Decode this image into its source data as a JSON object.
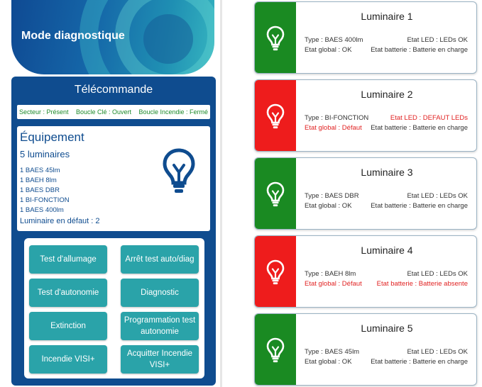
{
  "header": {
    "title": "Mode diagnostique"
  },
  "telecommande": {
    "title": "Télécommande",
    "status": {
      "secteur": "Secteur : Présent",
      "boucle_cle": "Boucle Clé : Ouvert",
      "boucle_incendie": "Boucle Incendie : Fermé"
    }
  },
  "equipement": {
    "title": "Équipement",
    "count": "5 luminaires",
    "items": [
      "1 BAES 45lm",
      "1 BAEH 8lm",
      "1 BAES DBR",
      "1 BI-FONCTION",
      "1 BAES 400lm"
    ],
    "defaut": "Luminaire en défaut : 2"
  },
  "buttons": [
    {
      "label": "Test d'allumage"
    },
    {
      "label": "Arrêt test auto/diag"
    },
    {
      "label": "Test d'autonomie"
    },
    {
      "label": "Diagnostic"
    },
    {
      "label": "Extinction"
    },
    {
      "label": "Programmation test autonomie"
    },
    {
      "label": "Incendie VISI+"
    },
    {
      "label": "Acquitter Incendie VISI+"
    }
  ],
  "luminaires": [
    {
      "name": "Luminaire 1",
      "status": "ok",
      "type": "Type : BAES 400lm",
      "led": "Etat LED : LEDs OK",
      "global": "Etat global : OK",
      "batterie": "Etat batterie : Batterie en charge"
    },
    {
      "name": "Luminaire 2",
      "status": "error",
      "type": "Type : BI-FONCTION",
      "led": "Etat LED : DEFAUT LEDs",
      "global": "Etat global : Défaut",
      "batterie": "Etat batterie : Batterie en charge"
    },
    {
      "name": "Luminaire 3",
      "status": "ok",
      "type": "Type : BAES DBR",
      "led": "Etat LED : LEDs OK",
      "global": "Etat global : OK",
      "batterie": "Etat batterie : Batterie en charge"
    },
    {
      "name": "Luminaire 4",
      "status": "error",
      "type": "Type : BAEH 8lm",
      "led": "Etat LED : LEDs OK",
      "global": "Etat global : Défaut",
      "batterie": "Etat batterie : Batterie absente"
    },
    {
      "name": "Luminaire 5",
      "status": "ok",
      "type": "Type : BAES 45lm",
      "led": "Etat LED : LEDs OK",
      "global": "Etat global : OK",
      "batterie": "Etat batterie : Batterie en charge"
    }
  ],
  "colors": {
    "primary": "#0f4c8f",
    "button": "#2aa3a9",
    "ok": "#1a8a22",
    "error": "#ee1c1c",
    "status_text": "#1d8a2a"
  },
  "icons": {
    "equipment": "lightbulb-icon",
    "luminaire": "lightbulb-icon"
  }
}
